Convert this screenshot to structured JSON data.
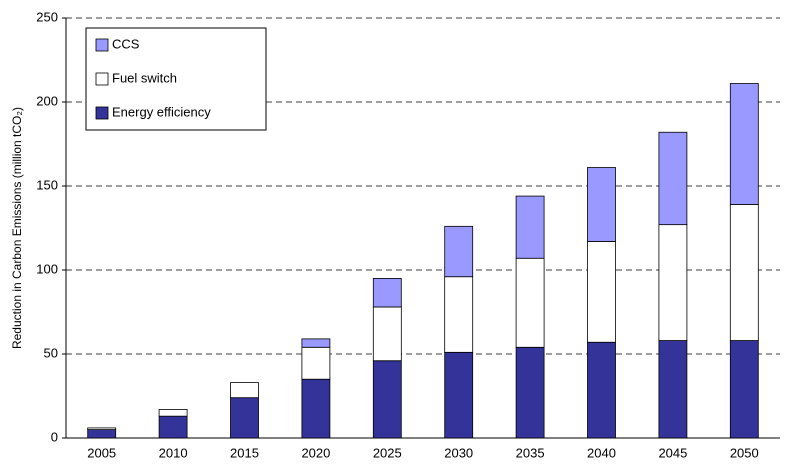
{
  "chart_data": {
    "type": "stacked_bar",
    "y_label": "Reduction in Carbon Emissions (million tCO₂)",
    "categories": [
      "2005",
      "2010",
      "2015",
      "2020",
      "2025",
      "2030",
      "2035",
      "2040",
      "2045",
      "2050"
    ],
    "series": [
      {
        "name": "Energy efficiency",
        "color": "#333399",
        "values": [
          5,
          13,
          24,
          35,
          46,
          51,
          54,
          57,
          58,
          58
        ]
      },
      {
        "name": "Fuel switch",
        "color": "#ffffff",
        "values": [
          1,
          4,
          9,
          19,
          32,
          45,
          53,
          60,
          69,
          81
        ]
      },
      {
        "name": "CCS",
        "color": "#9999ff",
        "values": [
          0,
          0,
          0,
          5,
          17,
          30,
          37,
          44,
          55,
          72
        ]
      }
    ],
    "ylim": [
      0,
      250
    ],
    "yticks": [
      0,
      50,
      100,
      150,
      200,
      250
    ],
    "grid": true,
    "legend": "upper left"
  }
}
